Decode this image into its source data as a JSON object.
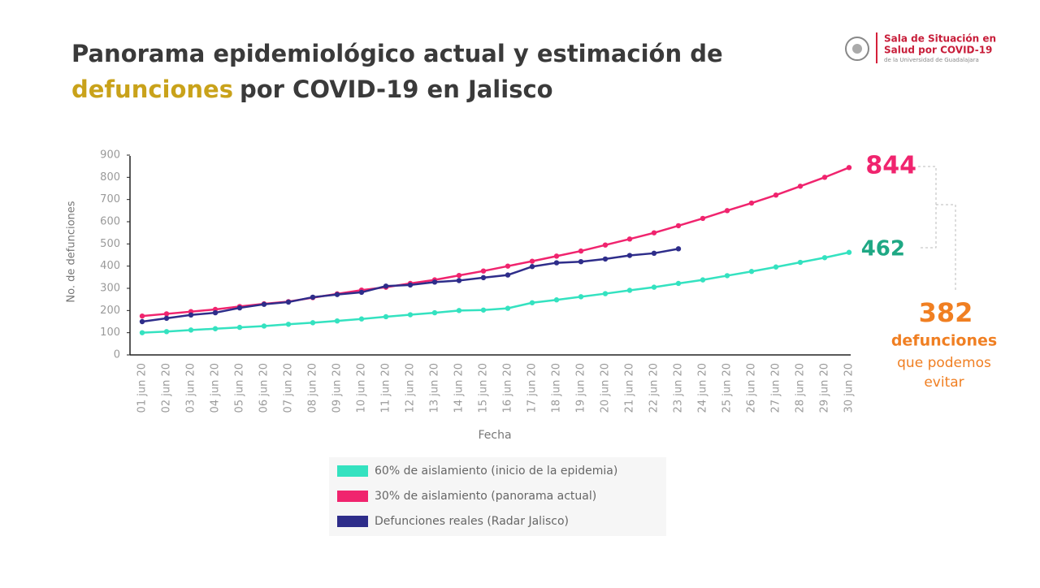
{
  "header": {
    "logo_lines": [
      "Sala de Situación en",
      "Salud por COVID-19",
      "de la Universidad de Guadalajara"
    ]
  },
  "chart_data": {
    "type": "line",
    "title_parts": [
      "Panorama epidemiológico actual y estimación de",
      "defunciones",
      "por COVID-19 en Jalisco"
    ],
    "x_label": "Fecha",
    "y_label": "No. de defunciones",
    "categories": [
      "01 jun 20",
      "02 jun 20",
      "03 jun 20",
      "04 jun 20",
      "05 jun 20",
      "06 jun 20",
      "07 jun 20",
      "08 jun 20",
      "09 jun 20",
      "10 jun 20",
      "11 jun 20",
      "12 jun 20",
      "13 jun 20",
      "14 jun 20",
      "15 jun 20",
      "16 jun 20",
      "17 jun 20",
      "18 jun 20",
      "19 jun 20",
      "20 jun 20",
      "21 jun 20",
      "22 jun 20",
      "23 jun 20",
      "24 jun 20",
      "25 jun 20",
      "26 jun 20",
      "27 jun 20",
      "28 jun 20",
      "29 jun 20",
      "30 jun 20"
    ],
    "ylim": [
      0,
      900
    ],
    "yticks": [
      0,
      100,
      200,
      300,
      400,
      500,
      600,
      700,
      800,
      900
    ],
    "series": [
      {
        "name": "60% de aislamiento (inicio de la epidemia)",
        "color": "#34e2c0",
        "values": [
          100,
          105,
          112,
          118,
          124,
          130,
          138,
          145,
          153,
          162,
          172,
          181,
          190,
          200,
          202,
          210,
          235,
          248,
          262,
          276,
          291,
          305,
          322,
          338,
          357,
          376,
          396,
          417,
          438,
          462
        ]
      },
      {
        "name": "30% de aislamiento (panorama actual)",
        "color": "#f0246e",
        "values": [
          175,
          185,
          195,
          205,
          218,
          230,
          240,
          258,
          275,
          292,
          305,
          322,
          338,
          358,
          378,
          400,
          422,
          445,
          468,
          495,
          522,
          550,
          582,
          615,
          650,
          684,
          720,
          760,
          800,
          844
        ]
      },
      {
        "name": "Defunciones reales (Radar Jalisco)",
        "color": "#2e2d8a",
        "values": [
          150,
          165,
          180,
          190,
          212,
          228,
          238,
          260,
          272,
          282,
          310,
          315,
          328,
          335,
          348,
          360,
          398,
          415,
          420,
          432,
          448,
          458,
          478,
          null,
          null,
          null,
          null,
          null,
          null,
          null
        ]
      }
    ],
    "annotations": {
      "difference": 382,
      "difference_lines": [
        "defunciones",
        "que podemos",
        "evitar"
      ]
    }
  }
}
